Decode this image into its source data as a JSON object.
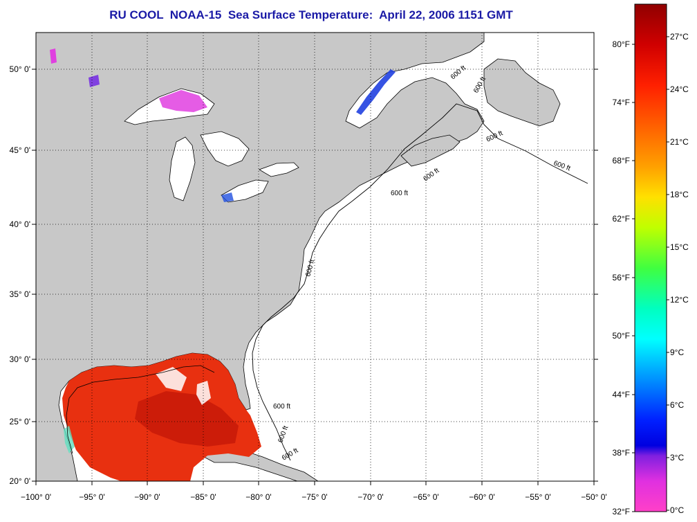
{
  "title": "RU COOL  NOAA-15  Sea Surface Temperature:  April 22, 2006 1151 GMT",
  "map": {
    "lon_range": [
      -100,
      -50
    ],
    "lat_range": [
      20,
      52.5
    ],
    "lon_ticks": [
      "−100° 0'",
      "−95° 0'",
      "−90° 0'",
      "−85° 0'",
      "−80° 0'",
      "−75° 0'",
      "−70° 0'",
      "−65° 0'",
      "−60° 0'",
      "−55° 0'",
      "−50° 0'"
    ],
    "lat_ticks": [
      "20° 0'",
      "25° 0'",
      "30° 0'",
      "35° 0'",
      "40° 0'",
      "45° 0'",
      "50° 0'"
    ],
    "isobath_label": "600 ft",
    "grid": "dotted",
    "colors": {
      "land": "#c8c8c8",
      "ocean_no_data": "#ffffff",
      "coastline": "#000000",
      "gulf_sst": "#e83010",
      "gulf_sst_warm": "#c81808",
      "lake_cold": "#e040e0",
      "lake_blue": "#2040e0"
    }
  },
  "colorbar": {
    "celsius_labels": [
      "27°C",
      "24°C",
      "21°C",
      "18°C",
      "15°C",
      "12°C",
      "9°C",
      "6°C",
      "3°C",
      "0°C"
    ],
    "fahrenheit_labels": [
      "80°F",
      "74°F",
      "68°F",
      "62°F",
      "56°F",
      "50°F",
      "44°F",
      "38°F",
      "32°F"
    ],
    "stops": [
      "#a00000",
      "#e00000",
      "#ff4000",
      "#ff8000",
      "#ffc000",
      "#ffff00",
      "#a0ff00",
      "#40ff40",
      "#00ffc0",
      "#00ffff",
      "#00a0ff",
      "#0040ff",
      "#0000ff",
      "#8000e0",
      "#ff00ff",
      "#ff40d0"
    ]
  }
}
